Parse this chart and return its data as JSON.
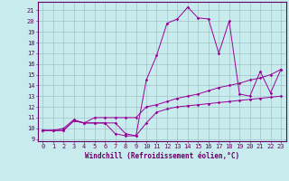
{
  "xlabel": "Windchill (Refroidissement éolien,°C)",
  "xlim": [
    -0.5,
    23.5
  ],
  "ylim": [
    8.8,
    21.8
  ],
  "yticks": [
    9,
    10,
    11,
    12,
    13,
    14,
    15,
    16,
    17,
    18,
    19,
    20,
    21
  ],
  "xticks": [
    0,
    1,
    2,
    3,
    4,
    5,
    6,
    7,
    8,
    9,
    10,
    11,
    12,
    13,
    14,
    15,
    16,
    17,
    18,
    19,
    20,
    21,
    22,
    23
  ],
  "bg_color": "#c8eced",
  "grid_color": "#9ab8bc",
  "line_color": "#990099",
  "line1_x": [
    0,
    1,
    2,
    3,
    4,
    5,
    6,
    7,
    8,
    9,
    10,
    11,
    12,
    13,
    14,
    15,
    16,
    17,
    18,
    19,
    20,
    21,
    22,
    23
  ],
  "line1_y": [
    9.8,
    9.8,
    9.8,
    10.7,
    10.5,
    10.5,
    10.5,
    10.5,
    9.5,
    9.3,
    10.5,
    11.5,
    11.8,
    12.0,
    12.1,
    12.2,
    12.3,
    12.4,
    12.5,
    12.6,
    12.7,
    12.8,
    12.9,
    13.0
  ],
  "line2_x": [
    0,
    1,
    2,
    3,
    4,
    5,
    6,
    7,
    8,
    9,
    10,
    11,
    12,
    13,
    14,
    15,
    16,
    17,
    18,
    19,
    20,
    21,
    22,
    23
  ],
  "line2_y": [
    9.8,
    9.8,
    10.0,
    10.8,
    10.5,
    11.0,
    11.0,
    11.0,
    11.0,
    11.0,
    12.0,
    12.2,
    12.5,
    12.8,
    13.0,
    13.2,
    13.5,
    13.8,
    14.0,
    14.2,
    14.5,
    14.7,
    15.0,
    15.5
  ],
  "line3_x": [
    0,
    1,
    2,
    3,
    4,
    5,
    6,
    7,
    8,
    9,
    10,
    11,
    12,
    13,
    14,
    15,
    16,
    17,
    18,
    19,
    20,
    21,
    22,
    23
  ],
  "line3_y": [
    9.8,
    9.8,
    9.8,
    10.7,
    10.5,
    10.5,
    10.5,
    9.5,
    9.3,
    9.3,
    14.5,
    16.8,
    19.8,
    20.2,
    21.3,
    20.3,
    20.2,
    17.0,
    20.0,
    13.2,
    13.0,
    15.3,
    13.3,
    15.5
  ],
  "tick_fontsize": 5.0,
  "label_fontsize": 5.5,
  "label_color": "#660066",
  "tick_color": "#660066",
  "spine_color": "#660066"
}
